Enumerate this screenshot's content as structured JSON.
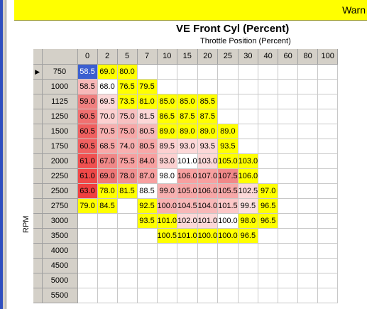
{
  "warning_text": "Warn",
  "table_title": "VE Front Cyl (Percent)",
  "x_axis_label": "Throttle Position (Percent)",
  "y_axis_label": "RPM",
  "selected_row_marker": "▶",
  "columns": [
    "0",
    "2",
    "5",
    "7",
    "10",
    "15",
    "20",
    "25",
    "30",
    "40",
    "60",
    "80",
    "100"
  ],
  "rows": [
    {
      "rpm": "750",
      "cells": [
        {
          "v": "58.5",
          "c": "#3b5fd0",
          "sel": true
        },
        {
          "v": "69.0",
          "c": "#ffff00"
        },
        {
          "v": "80.0",
          "c": "#ffff00"
        }
      ]
    },
    {
      "rpm": "1000",
      "cells": [
        {
          "v": "58.5",
          "c": "#f7b8b8"
        },
        {
          "v": "68.0",
          "c": "#ffffff"
        },
        {
          "v": "76.5",
          "c": "#ffff00"
        },
        {
          "v": "79.5",
          "c": "#ffff00"
        }
      ]
    },
    {
      "rpm": "1125",
      "cells": [
        {
          "v": "59.0",
          "c": "#f08080"
        },
        {
          "v": "69.5",
          "c": "#fcd8d8"
        },
        {
          "v": "73.5",
          "c": "#ffff00"
        },
        {
          "v": "81.0",
          "c": "#ffff00"
        },
        {
          "v": "85.0",
          "c": "#ffff00"
        },
        {
          "v": "85.0",
          "c": "#ffff00"
        },
        {
          "v": "85.5",
          "c": "#ffff00"
        }
      ]
    },
    {
      "rpm": "1250",
      "cells": [
        {
          "v": "60.5",
          "c": "#f07070"
        },
        {
          "v": "70.0",
          "c": "#fcd0d0"
        },
        {
          "v": "75.0",
          "c": "#f7c0c0"
        },
        {
          "v": "81.5",
          "c": "#fcd8d8"
        },
        {
          "v": "86.5",
          "c": "#ffff00"
        },
        {
          "v": "87.5",
          "c": "#ffff00"
        },
        {
          "v": "87.5",
          "c": "#ffff00"
        }
      ]
    },
    {
      "rpm": "1500",
      "cells": [
        {
          "v": "60.5",
          "c": "#f06060"
        },
        {
          "v": "70.5",
          "c": "#f7b0b0"
        },
        {
          "v": "75.0",
          "c": "#f7a8a8"
        },
        {
          "v": "80.5",
          "c": "#f7b8b8"
        },
        {
          "v": "89.0",
          "c": "#ffff00"
        },
        {
          "v": "89.0",
          "c": "#ffff00"
        },
        {
          "v": "89.0",
          "c": "#ffff00"
        },
        {
          "v": "89.0",
          "c": "#ffff00"
        }
      ]
    },
    {
      "rpm": "1750",
      "cells": [
        {
          "v": "60.5",
          "c": "#f06060"
        },
        {
          "v": "68.5",
          "c": "#f7a8a8"
        },
        {
          "v": "74.0",
          "c": "#f7b0b0"
        },
        {
          "v": "80.5",
          "c": "#f7a8a8"
        },
        {
          "v": "89.5",
          "c": "#fcd0d0"
        },
        {
          "v": "93.0",
          "c": "#fcd8d8"
        },
        {
          "v": "93.5",
          "c": "#fcd8d8"
        },
        {
          "v": "93.5",
          "c": "#ffff00"
        }
      ]
    },
    {
      "rpm": "2000",
      "cells": [
        {
          "v": "61.0",
          "c": "#f05050"
        },
        {
          "v": "67.0",
          "c": "#f08888"
        },
        {
          "v": "75.5",
          "c": "#f7a0a0"
        },
        {
          "v": "84.0",
          "c": "#f7a0a0"
        },
        {
          "v": "93.0",
          "c": "#fcd0d0"
        },
        {
          "v": "101.0",
          "c": "#ffffff"
        },
        {
          "v": "103.0",
          "c": "#fcd8d8"
        },
        {
          "v": "105.0",
          "c": "#ffff00"
        },
        {
          "v": "103.0",
          "c": "#ffff00"
        }
      ]
    },
    {
      "rpm": "2250",
      "cells": [
        {
          "v": "61.0",
          "c": "#f04848"
        },
        {
          "v": "69.0",
          "c": "#f07878"
        },
        {
          "v": "78.0",
          "c": "#f09090"
        },
        {
          "v": "87.0",
          "c": "#f7a0a0"
        },
        {
          "v": "98.0",
          "c": "#ffffff"
        },
        {
          "v": "106.0",
          "c": "#f7a0a0"
        },
        {
          "v": "107.0",
          "c": "#f7a0a0"
        },
        {
          "v": "107.5",
          "c": "#f08888"
        },
        {
          "v": "106.0",
          "c": "#ffff00"
        }
      ]
    },
    {
      "rpm": "2500",
      "cells": [
        {
          "v": "63.0",
          "c": "#f04040"
        },
        {
          "v": "78.0",
          "c": "#ffff00"
        },
        {
          "v": "81.5",
          "c": "#ffff00"
        },
        {
          "v": "88.5",
          "c": "#ffffff"
        },
        {
          "v": "99.0",
          "c": "#f7b0b0"
        },
        {
          "v": "105.0",
          "c": "#f7a8a8"
        },
        {
          "v": "106.0",
          "c": "#f7a8a8"
        },
        {
          "v": "105.5",
          "c": "#f7a8a8"
        },
        {
          "v": "102.5",
          "c": "#fcd8d8"
        },
        {
          "v": "97.0",
          "c": "#ffff00"
        }
      ]
    },
    {
      "rpm": "2750",
      "cells": [
        {
          "v": "79.0",
          "c": "#ffff00"
        },
        {
          "v": "84.5",
          "c": "#ffff00"
        },
        {
          "v": "",
          "c": "#ffffff"
        },
        {
          "v": "92.5",
          "c": "#ffff00"
        },
        {
          "v": "100.0",
          "c": "#f7b0b0"
        },
        {
          "v": "104.5",
          "c": "#f7b8b8"
        },
        {
          "v": "104.0",
          "c": "#f7b8b8"
        },
        {
          "v": "101.5",
          "c": "#fcc8c8"
        },
        {
          "v": "99.5",
          "c": "#fce0e0"
        },
        {
          "v": "96.5",
          "c": "#ffff00"
        }
      ]
    },
    {
      "rpm": "3000",
      "cells": [
        {
          "v": "",
          "c": "#ffffff"
        },
        {
          "v": "",
          "c": "#ffffff"
        },
        {
          "v": "",
          "c": "#ffffff"
        },
        {
          "v": "93.5",
          "c": "#ffff00"
        },
        {
          "v": "101.0",
          "c": "#ffff00"
        },
        {
          "v": "102.0",
          "c": "#fcd8d8"
        },
        {
          "v": "101.0",
          "c": "#fcd8d8"
        },
        {
          "v": "100.0",
          "c": "#ffffff"
        },
        {
          "v": "98.0",
          "c": "#ffff00"
        },
        {
          "v": "96.5",
          "c": "#ffff00"
        }
      ]
    },
    {
      "rpm": "3500",
      "cells": [
        {
          "v": "",
          "c": "#ffffff"
        },
        {
          "v": "",
          "c": "#ffffff"
        },
        {
          "v": "",
          "c": "#ffffff"
        },
        {
          "v": "",
          "c": "#ffffff"
        },
        {
          "v": "100.5",
          "c": "#ffff00"
        },
        {
          "v": "101.0",
          "c": "#ffff00"
        },
        {
          "v": "100.0",
          "c": "#ffff00"
        },
        {
          "v": "100.0",
          "c": "#ffff00"
        },
        {
          "v": "96.5",
          "c": "#ffff00"
        }
      ]
    },
    {
      "rpm": "4000",
      "cells": []
    },
    {
      "rpm": "4500",
      "cells": []
    },
    {
      "rpm": "5000",
      "cells": []
    },
    {
      "rpm": "5500",
      "cells": []
    }
  ]
}
